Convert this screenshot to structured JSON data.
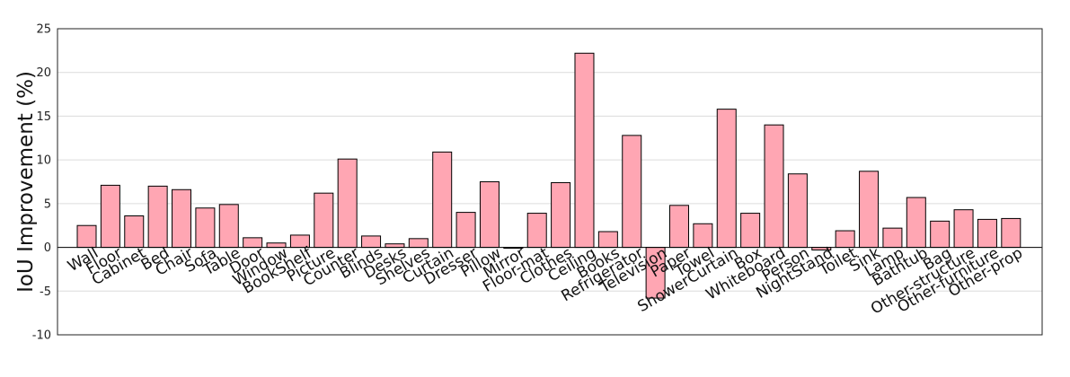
{
  "chart_data": {
    "type": "bar",
    "title": "",
    "xlabel": "",
    "ylabel": "IoU Improvement (%)",
    "ylim": [
      -10,
      25
    ],
    "yticks": [
      -10,
      -5,
      0,
      5,
      10,
      15,
      20,
      25
    ],
    "grid": true,
    "bar_color": "#ffa6b3",
    "categories": [
      "Wall",
      "Floor",
      "Cabinet",
      "Bed",
      "Chair",
      "Sofa",
      "Table",
      "Door",
      "Window",
      "BookShelf",
      "Picture",
      "Counter",
      "Blinds",
      "Desks",
      "Shelves",
      "Curtain",
      "Dresser",
      "Pillow",
      "Mirror",
      "Floor-mat",
      "Clothes",
      "Ceiling",
      "Books",
      "Refrigerator",
      "Television",
      "Paper",
      "Towel",
      "ShowerCurtain",
      "Box",
      "Whiteboard",
      "Person",
      "NightStand",
      "Toilet",
      "Sink",
      "Lamp",
      "Bathtub",
      "Bag",
      "Other-structure",
      "Other-furniture",
      "Other-prop"
    ],
    "values": [
      2.5,
      7.1,
      3.6,
      7.0,
      6.6,
      4.5,
      4.9,
      1.1,
      0.5,
      1.4,
      6.2,
      10.1,
      1.3,
      0.4,
      1.0,
      10.9,
      4.0,
      7.5,
      -0.1,
      3.9,
      7.4,
      22.2,
      1.8,
      12.8,
      -5.8,
      4.8,
      2.7,
      15.8,
      3.9,
      14.0,
      8.4,
      -0.3,
      1.9,
      8.7,
      2.2,
      5.7,
      3.0,
      4.3,
      3.2,
      3.3
    ]
  }
}
